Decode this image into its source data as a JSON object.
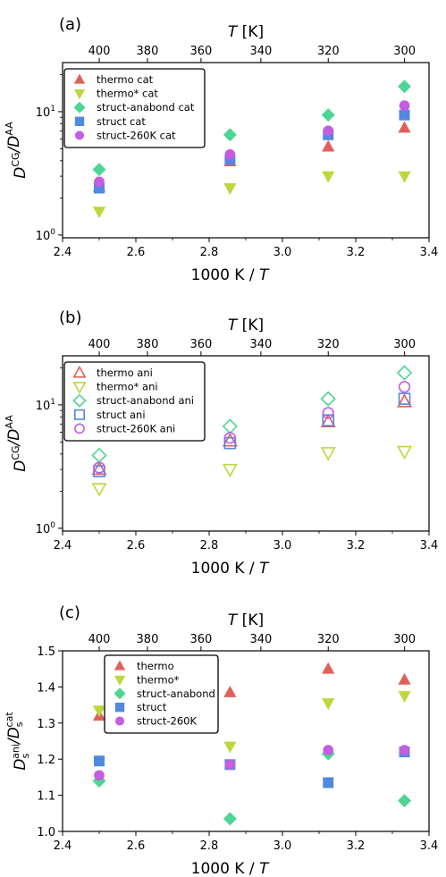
{
  "chart_data": [
    {
      "type": "scatter",
      "panel_label": "(a)",
      "xlabel": "1000 K / T",
      "ylabel": "D^CG/D^AA",
      "top_axis_label": "T [K]",
      "top_ticks": [
        "400",
        "380",
        "360",
        "340",
        "320",
        "300"
      ],
      "x_ticks": [
        "2.4",
        "2.6",
        "2.8",
        "3.0",
        "3.2",
        "3.4"
      ],
      "y_ticks": [
        "10^0",
        "10^1"
      ],
      "xlim": [
        2.4,
        3.4
      ],
      "ylim": [
        0.95,
        25
      ],
      "yscale": "log",
      "legend_position": "upper-left",
      "series": [
        {
          "name": "thermo cat",
          "marker": "triangle-up",
          "fill": true,
          "color": "#e0605a",
          "x": [
            2.5,
            2.857,
            3.125,
            3.333
          ],
          "y": [
            2.45,
            3.95,
            5.2,
            7.4
          ]
        },
        {
          "name": "thermo* cat",
          "marker": "triangle-down",
          "fill": true,
          "color": "#bcd83c",
          "x": [
            2.5,
            2.857,
            3.125,
            3.333
          ],
          "y": [
            1.55,
            2.4,
            3.0,
            3.0
          ]
        },
        {
          "name": "struct-anabond cat",
          "marker": "diamond",
          "fill": true,
          "color": "#4dd693",
          "x": [
            2.5,
            2.857,
            3.125,
            3.333
          ],
          "y": [
            3.4,
            6.5,
            9.4,
            16.0
          ]
        },
        {
          "name": "struct cat",
          "marker": "square",
          "fill": true,
          "color": "#5188e0",
          "x": [
            2.5,
            2.857,
            3.125,
            3.333
          ],
          "y": [
            2.4,
            4.1,
            6.5,
            9.4
          ]
        },
        {
          "name": "struct-260K cat",
          "marker": "circle",
          "fill": true,
          "color": "#c45de0",
          "x": [
            2.5,
            2.857,
            3.125,
            3.333
          ],
          "y": [
            2.7,
            4.5,
            7.0,
            11.2
          ]
        }
      ]
    },
    {
      "type": "scatter",
      "panel_label": "(b)",
      "xlabel": "1000 K / T",
      "ylabel": "D^CG/D^AA",
      "top_axis_label": "T [K]",
      "top_ticks": [
        "400",
        "380",
        "360",
        "340",
        "320",
        "300"
      ],
      "x_ticks": [
        "2.4",
        "2.6",
        "2.8",
        "3.0",
        "3.2",
        "3.4"
      ],
      "y_ticks": [
        "10^0",
        "10^1"
      ],
      "xlim": [
        2.4,
        3.4
      ],
      "ylim": [
        0.95,
        25
      ],
      "yscale": "log",
      "legend_position": "upper-left",
      "series": [
        {
          "name": "thermo ani",
          "marker": "triangle-up",
          "fill": false,
          "color": "#e0605a",
          "x": [
            2.5,
            2.857,
            3.125,
            3.333
          ],
          "y": [
            3.0,
            5.1,
            7.3,
            10.6
          ]
        },
        {
          "name": "thermo* ani",
          "marker": "triangle-down",
          "fill": false,
          "color": "#bcd83c",
          "x": [
            2.5,
            2.857,
            3.125,
            3.333
          ],
          "y": [
            2.1,
            3.0,
            4.1,
            4.2
          ]
        },
        {
          "name": "struct-anabond ani",
          "marker": "diamond",
          "fill": false,
          "color": "#4dd693",
          "x": [
            2.5,
            2.857,
            3.125,
            3.333
          ],
          "y": [
            3.9,
            6.7,
            11.2,
            18.2
          ]
        },
        {
          "name": "struct ani",
          "marker": "square",
          "fill": false,
          "color": "#5188e0",
          "x": [
            2.5,
            2.857,
            3.125,
            3.333
          ],
          "y": [
            2.9,
            4.9,
            7.5,
            11.2
          ]
        },
        {
          "name": "struct-260K ani",
          "marker": "circle",
          "fill": false,
          "color": "#c45de0",
          "x": [
            2.5,
            2.857,
            3.125,
            3.333
          ],
          "y": [
            3.1,
            5.4,
            8.6,
            14.0
          ]
        }
      ]
    },
    {
      "type": "scatter",
      "panel_label": "(c)",
      "xlabel": "1000 K / T",
      "ylabel": "D_s^ani/D_s^cat",
      "top_axis_label": "T [K]",
      "top_ticks": [
        "400",
        "380",
        "360",
        "340",
        "320",
        "300"
      ],
      "x_ticks": [
        "2.4",
        "2.6",
        "2.8",
        "3.0",
        "3.2",
        "3.4"
      ],
      "y_ticks": [
        "1.0",
        "1.1",
        "1.2",
        "1.3",
        "1.4",
        "1.5"
      ],
      "xlim": [
        2.4,
        3.4
      ],
      "ylim": [
        1.0,
        1.5
      ],
      "yscale": "linear",
      "legend_position": "upper-left",
      "series": [
        {
          "name": "thermo",
          "marker": "triangle-up",
          "fill": true,
          "color": "#e0605a",
          "x": [
            2.5,
            2.857,
            3.125,
            3.333
          ],
          "y": [
            1.32,
            1.385,
            1.45,
            1.42
          ]
        },
        {
          "name": "thermo*",
          "marker": "triangle-down",
          "fill": true,
          "color": "#bcd83c",
          "x": [
            2.5,
            2.857,
            3.125,
            3.333
          ],
          "y": [
            1.335,
            1.235,
            1.355,
            1.375
          ]
        },
        {
          "name": "struct-anabond",
          "marker": "diamond",
          "fill": true,
          "color": "#4dd693",
          "x": [
            2.5,
            2.857,
            3.125,
            3.333
          ],
          "y": [
            1.14,
            1.035,
            1.215,
            1.085
          ]
        },
        {
          "name": "struct",
          "marker": "square",
          "fill": true,
          "color": "#5188e0",
          "x": [
            2.5,
            2.857,
            3.125,
            3.333
          ],
          "y": [
            1.195,
            1.185,
            1.135,
            1.22
          ]
        },
        {
          "name": "struct-260K",
          "marker": "circle",
          "fill": true,
          "color": "#c45de0",
          "x": [
            2.5,
            2.857,
            3.125,
            3.333
          ],
          "y": [
            1.155,
            1.185,
            1.225,
            1.225
          ]
        }
      ]
    }
  ]
}
